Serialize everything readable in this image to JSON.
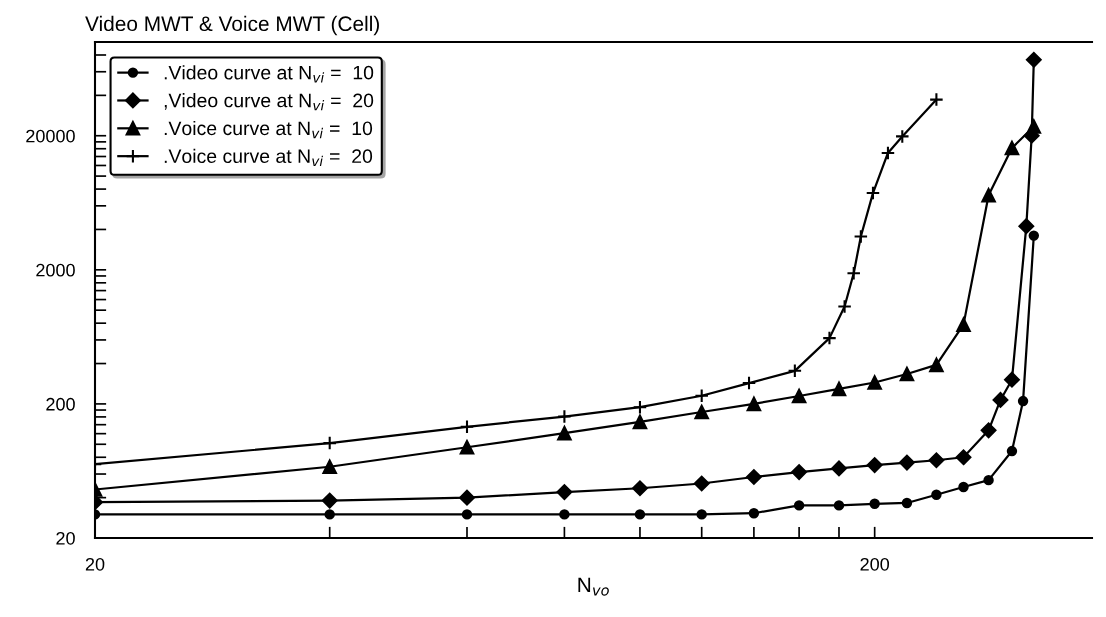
{
  "chart_data": {
    "type": "line",
    "title": "Video MWT & Voice MWT (Cell)",
    "xlabel": "N$_{vo}$",
    "log": "xy",
    "grid": false,
    "legend": "top left",
    "line_style": "solid",
    "xlim": [
      20,
      380
    ],
    "xticks": [
      20,
      {
        "value": 40,
        "label": null
      },
      {
        "value": 60,
        "label": null
      },
      {
        "value": 80,
        "label": null
      },
      {
        "value": 100,
        "label": null
      },
      {
        "value": 120,
        "label": null
      },
      {
        "value": 140,
        "label": null
      },
      {
        "value": 160,
        "label": null
      },
      {
        "value": 180,
        "label": null
      },
      200
    ],
    "ylim": [
      20,
      100000
    ],
    "yticks": [
      20,
      {
        "value": 40,
        "label": null
      },
      {
        "value": 60,
        "label": null
      },
      {
        "value": 80,
        "label": null
      },
      {
        "value": 100,
        "label": null
      },
      {
        "value": 120,
        "label": null
      },
      {
        "value": 140,
        "label": null
      },
      {
        "value": 160,
        "label": null
      },
      {
        "value": 180,
        "label": null
      },
      200,
      {
        "value": 400,
        "label": null
      },
      {
        "value": 600,
        "label": null
      },
      {
        "value": 800,
        "label": null
      },
      {
        "value": 1000,
        "label": null
      },
      {
        "value": 1200,
        "label": null
      },
      {
        "value": 1400,
        "label": null
      },
      {
        "value": 1600,
        "label": null
      },
      {
        "value": 1800,
        "label": null
      },
      2000,
      {
        "value": 4000,
        "label": null
      },
      {
        "value": 6000,
        "label": null
      },
      {
        "value": 8000,
        "label": null
      },
      {
        "value": 10000,
        "label": null
      },
      {
        "value": 12000,
        "label": null
      },
      {
        "value": 14000,
        "label": null
      },
      {
        "value": 16000,
        "label": null
      },
      {
        "value": 18000,
        "label": null
      },
      20000,
      {
        "value": 40000,
        "label": null
      },
      {
        "value": 60000,
        "label": null
      },
      {
        "value": 80000,
        "label": null
      }
    ],
    "series": [
      {
        "name": ".Video curve at N$_{vi}$ =  10",
        "color": "#000000",
        "marker": "circle",
        "x": [
          20,
          40,
          60,
          80,
          100,
          120,
          140,
          160,
          180,
          200,
          220,
          240,
          260,
          280,
          300,
          310,
          320
        ],
        "values": [
          30,
          30,
          30,
          30,
          30,
          30,
          30.6,
          35,
          35,
          36,
          36.5,
          42,
          48,
          54,
          89,
          210,
          3600
        ]
      },
      {
        "name": ",Video curve at N$_{vi}$ =  20",
        "color": "#000000",
        "marker": "diamond",
        "x": [
          20,
          40,
          60,
          80,
          100,
          120,
          140,
          160,
          180,
          200,
          220,
          240,
          260,
          280,
          290,
          300,
          313,
          318,
          320
        ],
        "values": [
          37,
          38,
          40,
          44,
          47,
          51,
          57,
          62,
          66,
          70,
          73,
          76,
          80,
          127,
          214,
          303,
          4230,
          20000,
          73700
        ]
      },
      {
        "name": ".Voice curve at N$_{vi}$ =  10",
        "color": "#000000",
        "marker": "triangle",
        "x": [
          20,
          40,
          60,
          80,
          100,
          120,
          140,
          160,
          180,
          200,
          220,
          240,
          260,
          280,
          300,
          320
        ],
        "values": [
          46,
          68,
          95,
          121,
          147,
          174,
          200,
          229,
          259,
          289,
          334,
          391,
          780,
          7200,
          16200,
          23400
        ]
      },
      {
        "name": ".Voice curve at N$_{vi}$ =  20",
        "color": "#000000",
        "marker": "cross",
        "x": [
          20,
          40,
          60,
          80,
          100,
          120,
          138,
          158,
          175,
          183,
          188,
          192,
          199,
          208,
          217,
          240
        ],
        "values": [
          71,
          102,
          135,
          161,
          189,
          230,
          286,
          353,
          619,
          1065,
          1888,
          3545,
          7470,
          14870,
          19770,
          37200
        ]
      }
    ]
  }
}
